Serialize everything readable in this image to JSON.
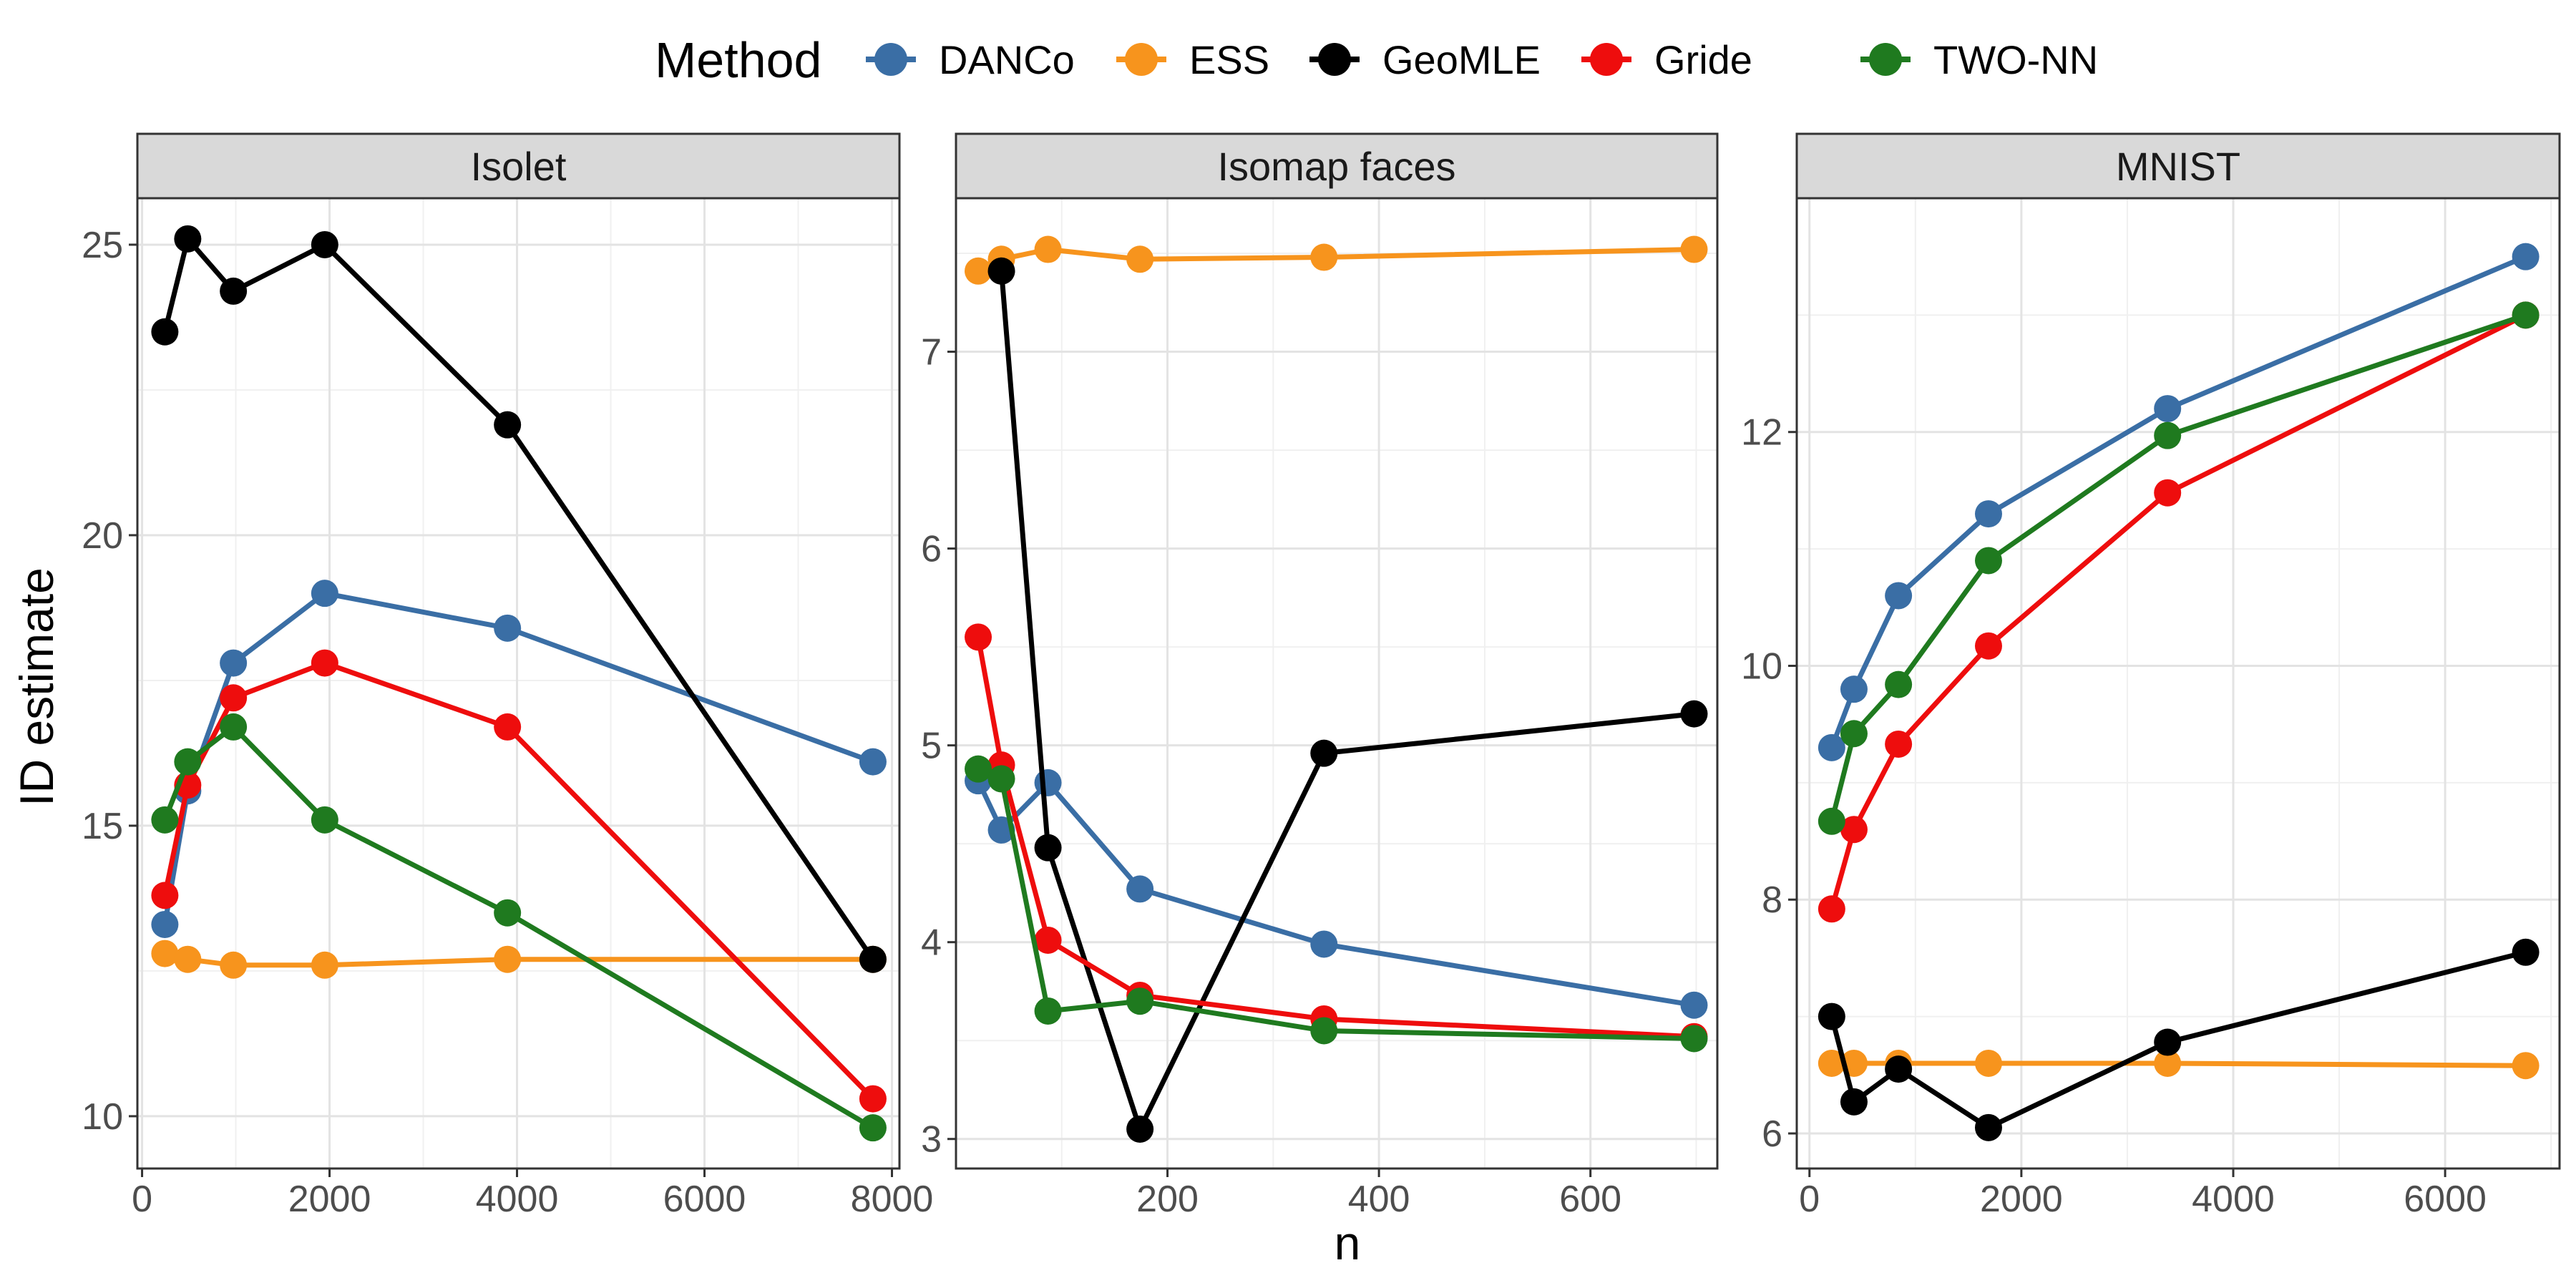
{
  "legend": {
    "title": "Method",
    "items": [
      {
        "name": "DANCo",
        "color": "#3a6ea5"
      },
      {
        "name": "ESS",
        "color": "#f7941d"
      },
      {
        "name": "GeoMLE",
        "color": "#000000"
      },
      {
        "name": "Gride",
        "color": "#ee0d0d"
      },
      {
        "name": "TWO-NN",
        "color": "#1f7a1f"
      }
    ]
  },
  "axes": {
    "xlabel": "n",
    "ylabel": "ID estimate"
  },
  "chart_data": [
    {
      "type": "line",
      "title": "Isolet",
      "xlim": [
        -50,
        8080
      ],
      "ylim": [
        9.1,
        25.8
      ],
      "xticks": [
        0,
        2000,
        4000,
        6000,
        8000
      ],
      "xtick_labels": [
        "0",
        "2000",
        "4000",
        "6000",
        "8000"
      ],
      "yticks": [
        10,
        15,
        20,
        25
      ],
      "ytick_labels": [
        "10",
        "15",
        "20",
        "25"
      ],
      "x": [
        243,
        487,
        974,
        1949,
        3898,
        7797
      ],
      "series": [
        {
          "name": "DANCo",
          "values": [
            13.3,
            15.6,
            17.8,
            19.0,
            18.4,
            16.1
          ]
        },
        {
          "name": "ESS",
          "values": [
            12.8,
            12.7,
            12.6,
            12.6,
            12.7,
            12.7
          ]
        },
        {
          "name": "GeoMLE",
          "values": [
            23.5,
            25.1,
            24.2,
            25.0,
            21.9,
            12.7
          ]
        },
        {
          "name": "Gride",
          "values": [
            13.8,
            15.7,
            17.2,
            17.8,
            16.7,
            10.3
          ]
        },
        {
          "name": "TWO-NN",
          "values": [
            15.1,
            16.1,
            16.7,
            15.1,
            13.5,
            9.8
          ]
        }
      ]
    },
    {
      "type": "line",
      "title": "Isomap faces",
      "xlim": [
        0,
        720
      ],
      "ylim": [
        2.85,
        7.78
      ],
      "xticks": [
        200,
        400,
        600
      ],
      "xtick_labels": [
        "200",
        "400",
        "600"
      ],
      "yticks": [
        3,
        4,
        5,
        6,
        7
      ],
      "ytick_labels": [
        "3",
        "4",
        "5",
        "6",
        "7"
      ],
      "x": [
        21,
        43,
        87,
        174,
        348,
        698
      ],
      "series": [
        {
          "name": "DANCo",
          "values": [
            4.82,
            4.57,
            4.81,
            4.27,
            3.99,
            3.68
          ]
        },
        {
          "name": "ESS",
          "values": [
            7.41,
            7.47,
            7.52,
            7.47,
            7.48,
            7.52
          ]
        },
        {
          "name": "GeoMLE",
          "values": [
            null,
            7.41,
            4.48,
            3.05,
            4.96,
            5.16
          ]
        },
        {
          "name": "Gride",
          "values": [
            5.55,
            4.9,
            4.01,
            3.73,
            3.61,
            3.52
          ]
        },
        {
          "name": "TWO-NN",
          "values": [
            4.88,
            4.83,
            3.65,
            3.7,
            3.55,
            3.51
          ]
        }
      ]
    },
    {
      "type": "line",
      "title": "MNIST",
      "xlim": [
        -120,
        7080
      ],
      "ylim": [
        5.7,
        14.0
      ],
      "xticks": [
        0,
        2000,
        4000,
        6000
      ],
      "xtick_labels": [
        "0",
        "2000",
        "4000",
        "6000"
      ],
      "yticks": [
        6,
        8,
        10,
        12
      ],
      "ytick_labels": [
        "6",
        "8",
        "10",
        "12"
      ],
      "x": [
        210,
        420,
        840,
        1690,
        3380,
        6760
      ],
      "series": [
        {
          "name": "DANCo",
          "values": [
            9.3,
            9.8,
            10.6,
            11.3,
            12.2,
            13.5
          ]
        },
        {
          "name": "ESS",
          "values": [
            6.6,
            6.6,
            6.6,
            6.6,
            6.6,
            6.58
          ]
        },
        {
          "name": "GeoMLE",
          "values": [
            7.0,
            6.27,
            6.55,
            6.05,
            6.78,
            7.55
          ]
        },
        {
          "name": "Gride",
          "values": [
            7.92,
            8.6,
            9.33,
            10.17,
            11.48,
            13.0
          ]
        },
        {
          "name": "TWO-NN",
          "values": [
            8.67,
            9.42,
            9.84,
            10.9,
            11.97,
            13.0
          ]
        }
      ]
    }
  ]
}
